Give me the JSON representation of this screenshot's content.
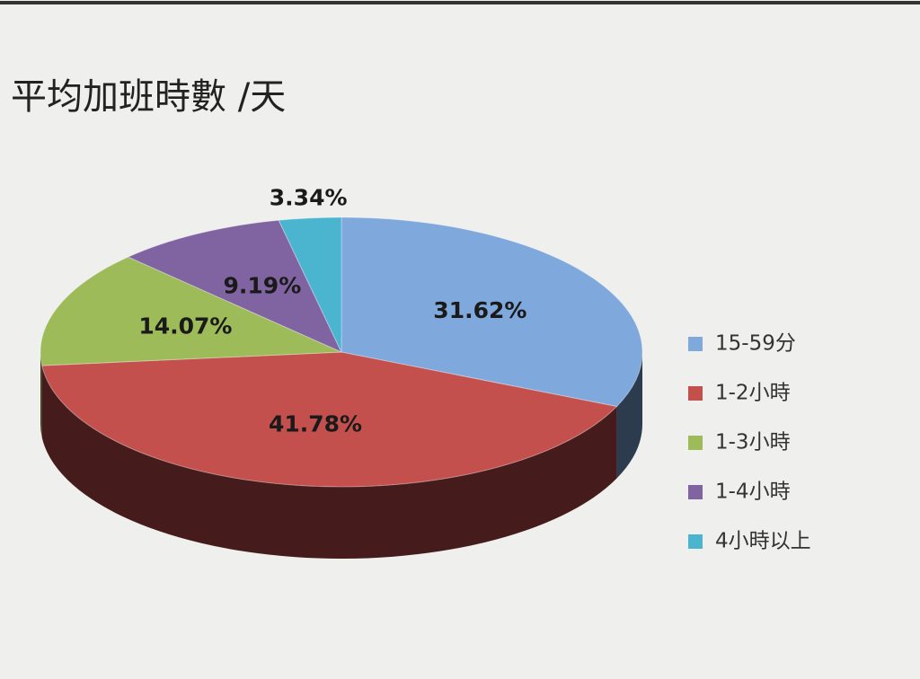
{
  "chart_data": {
    "type": "pie",
    "title": "平均加班時數 /天",
    "categories": [
      "15-59分",
      "1-2小時",
      "1-3小時",
      "1-4小時",
      "4小時以上"
    ],
    "values": [
      31.62,
      41.78,
      14.07,
      9.19,
      3.34
    ],
    "value_labels": [
      "31.62%",
      "41.78%",
      "14.07%",
      "9.19%",
      "3.34%"
    ],
    "colors": [
      "#7fa8dc",
      "#c4504e",
      "#9dbb58",
      "#8064a2",
      "#4bb4cf"
    ]
  }
}
